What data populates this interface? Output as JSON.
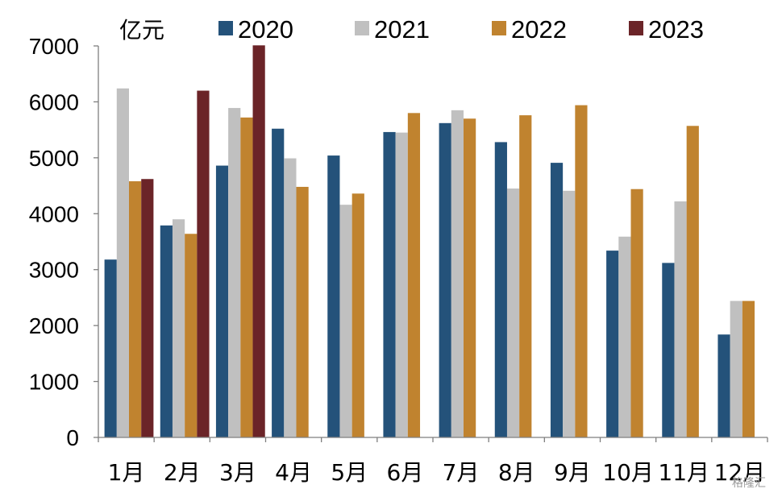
{
  "chart_data": {
    "type": "bar",
    "unit_label": "亿元",
    "categories": [
      "1月",
      "2月",
      "3月",
      "4月",
      "5月",
      "6月",
      "7月",
      "8月",
      "9月",
      "10月",
      "11月",
      "12月"
    ],
    "series": [
      {
        "name": "2020",
        "color": "#24527a",
        "values": [
          3180,
          3790,
          4860,
          5520,
          5040,
          5460,
          5620,
          5280,
          4910,
          3340,
          3120,
          1840
        ]
      },
      {
        "name": "2021",
        "color": "#c0c0c0",
        "values": [
          6240,
          3900,
          5890,
          4990,
          4160,
          5450,
          5850,
          4450,
          4410,
          3590,
          4220,
          2440
        ]
      },
      {
        "name": "2022",
        "color": "#c0832f",
        "values": [
          4580,
          3640,
          5720,
          4480,
          4360,
          5800,
          5700,
          5760,
          5940,
          4440,
          5570,
          2440
        ]
      },
      {
        "name": "2023",
        "color": "#6b2428",
        "values": [
          4620,
          6200,
          7010,
          null,
          null,
          null,
          null,
          null,
          null,
          null,
          null,
          null
        ]
      }
    ],
    "y_ticks": [
      "0",
      "1000",
      "2000",
      "3000",
      "4000",
      "5000",
      "6000",
      "7000"
    ],
    "ylim": [
      0,
      7000
    ],
    "grid": false,
    "legend": "top"
  },
  "watermark": "格隆汇"
}
